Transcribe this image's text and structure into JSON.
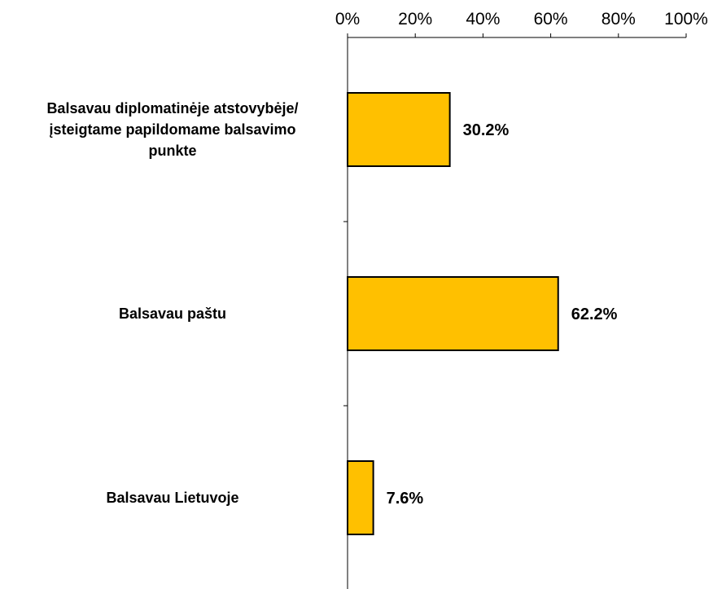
{
  "chart_data": {
    "type": "bar",
    "orientation": "horizontal",
    "categories": [
      [
        "Balsavau diplomatinėje atstovybėje/",
        "įsteigtame papildomame balsavimo",
        "punkte"
      ],
      [
        "Balsavau paštu"
      ],
      [
        "Balsavau Lietuvoje"
      ]
    ],
    "values": [
      30.2,
      62.2,
      7.6
    ],
    "value_labels": [
      "30.2%",
      "62.2%",
      "7.6%"
    ],
    "x_ticks": [
      "0%",
      "20%",
      "40%",
      "60%",
      "80%",
      "100%"
    ],
    "xlim": [
      0,
      100
    ],
    "x_axis_position": "top",
    "bar_color": "#FFC000",
    "bar_edge_color": "#000000",
    "grid": false,
    "legend": "none"
  }
}
